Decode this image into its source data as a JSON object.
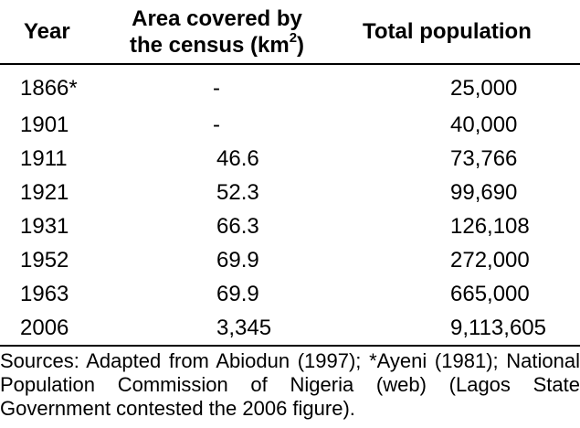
{
  "table": {
    "headers": {
      "year": "Year",
      "area_line1": "Area covered by",
      "area_line2": "the census (km",
      "area_sup": "2",
      "area_close": ")",
      "population": "Total population"
    },
    "rows": [
      {
        "year": "1866*",
        "area": "-",
        "population": "25,000"
      },
      {
        "year": "1901",
        "area": "-",
        "population": "40,000"
      },
      {
        "year": "1911",
        "area": "46.6",
        "population": "73,766"
      },
      {
        "year": "1921",
        "area": "52.3",
        "population": "99,690"
      },
      {
        "year": "1931",
        "area": "66.3",
        "population": "126,108"
      },
      {
        "year": "1952",
        "area": "69.9",
        "population": "272,000"
      },
      {
        "year": "1963",
        "area": "69.9",
        "population": "665,000"
      },
      {
        "year": "2006",
        "area": "3,345",
        "population": "9,113,605"
      }
    ]
  },
  "sources": "Sources: Adapted from Abiodun (1997); *Ayeni (1981); National Population Commission of Nigeria (web) (Lagos State Government contested the 2006 figure)."
}
